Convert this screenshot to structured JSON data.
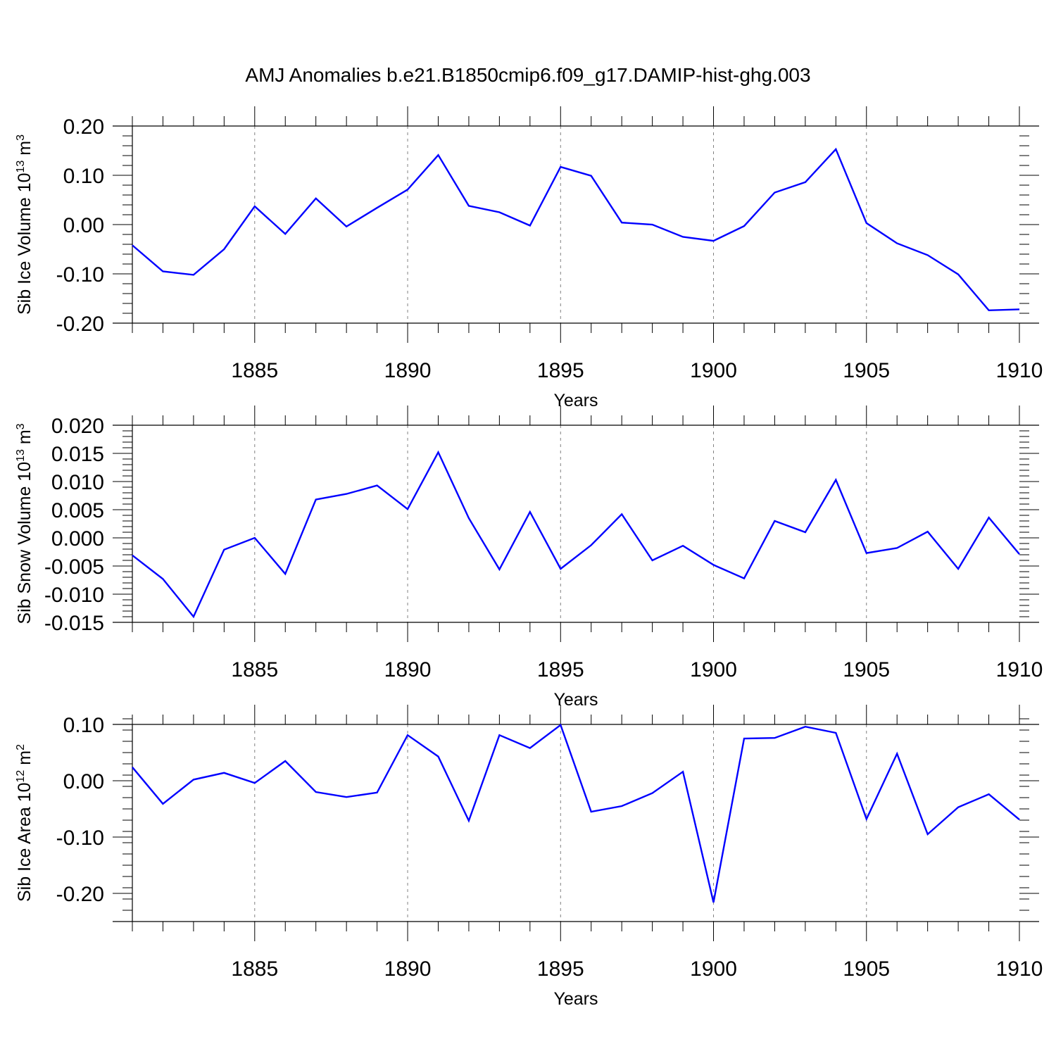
{
  "figure": {
    "title": "AMJ Anomalies b.e21.B1850cmip6.f09_g17.DAMIP-hist-ghg.003",
    "line_color": "#0000ff"
  },
  "chart_data": [
    {
      "type": "line",
      "ylabel": "Sib Ice Volume 10",
      "ylabel_exp": "13",
      "ylabel_unit": " m",
      "ylabel_unit_exp": "3",
      "xlabel": "Years",
      "xlim": [
        1881,
        1910
      ],
      "ylim": [
        -0.2,
        0.2
      ],
      "yticks": [
        -0.2,
        -0.1,
        0.0,
        0.1,
        0.2
      ],
      "ytick_labels": [
        "-0.20",
        "-0.10",
        "0.00",
        "0.10",
        "0.20"
      ],
      "xticks": [
        1885,
        1890,
        1895,
        1900,
        1905,
        1910
      ],
      "xtick_labels": [
        "1885",
        "1890",
        "1895",
        "1900",
        "1905",
        "1910"
      ],
      "minor_y_step": 0.02,
      "x": [
        1881,
        1882,
        1883,
        1884,
        1885,
        1886,
        1887,
        1888,
        1889,
        1890,
        1891,
        1892,
        1893,
        1894,
        1895,
        1896,
        1897,
        1898,
        1899,
        1900,
        1901,
        1902,
        1903,
        1904,
        1905,
        1906,
        1907,
        1908,
        1909,
        1910
      ],
      "values": [
        -0.042,
        -0.095,
        -0.102,
        -0.05,
        0.037,
        -0.019,
        0.053,
        -0.004,
        0.034,
        0.071,
        0.141,
        0.038,
        0.025,
        -0.002,
        0.117,
        0.099,
        0.004,
        0.0,
        -0.025,
        -0.033,
        -0.003,
        0.065,
        0.086,
        0.153,
        0.003,
        -0.038,
        -0.062,
        -0.101,
        -0.174,
        -0.172
      ]
    },
    {
      "type": "line",
      "ylabel": "Sib Snow Volume 10",
      "ylabel_exp": "13",
      "ylabel_unit": " m",
      "ylabel_unit_exp": "3",
      "xlabel": "Years",
      "xlim": [
        1881,
        1910
      ],
      "ylim": [
        -0.015,
        0.02
      ],
      "yticks": [
        -0.015,
        -0.01,
        -0.005,
        0.0,
        0.005,
        0.01,
        0.015,
        0.02
      ],
      "ytick_labels": [
        "-0.015",
        "-0.010",
        "-0.005",
        "0.000",
        "0.005",
        "0.010",
        "0.015",
        "0.020"
      ],
      "xticks": [
        1885,
        1890,
        1895,
        1900,
        1905,
        1910
      ],
      "xtick_labels": [
        "1885",
        "1890",
        "1895",
        "1900",
        "1905",
        "1910"
      ],
      "minor_y_step": 0.001,
      "x": [
        1881,
        1882,
        1883,
        1884,
        1885,
        1886,
        1887,
        1888,
        1889,
        1890,
        1891,
        1892,
        1893,
        1894,
        1895,
        1896,
        1897,
        1898,
        1899,
        1900,
        1901,
        1902,
        1903,
        1904,
        1905,
        1906,
        1907,
        1908,
        1909,
        1910
      ],
      "values": [
        -0.0031,
        -0.0073,
        -0.014,
        -0.0021,
        0.0,
        -0.0064,
        0.0068,
        0.0078,
        0.0093,
        0.0051,
        0.0152,
        0.0035,
        -0.0056,
        0.0046,
        -0.0055,
        -0.0013,
        0.0042,
        -0.004,
        -0.0014,
        -0.0048,
        -0.0072,
        0.003,
        0.001,
        0.0103,
        -0.0027,
        -0.0018,
        0.0011,
        -0.0055,
        0.0036,
        -0.0029
      ]
    },
    {
      "type": "line",
      "ylabel": "Sib Ice Area 10",
      "ylabel_exp": "12",
      "ylabel_unit": " m",
      "ylabel_unit_exp": "2",
      "xlabel": "Years",
      "xlim": [
        1881,
        1910
      ],
      "ylim": [
        -0.25,
        0.1
      ],
      "yticks": [
        -0.2,
        -0.1,
        0.0,
        0.1
      ],
      "ytick_labels": [
        "-0.20",
        "-0.10",
        "0.00",
        "0.10"
      ],
      "xticks": [
        1885,
        1890,
        1895,
        1900,
        1905,
        1910
      ],
      "xtick_labels": [
        "1885",
        "1890",
        "1895",
        "1900",
        "1905",
        "1910"
      ],
      "minor_y_step": 0.02,
      "x": [
        1881,
        1882,
        1883,
        1884,
        1885,
        1886,
        1887,
        1888,
        1889,
        1890,
        1891,
        1892,
        1893,
        1894,
        1895,
        1896,
        1897,
        1898,
        1899,
        1900,
        1901,
        1902,
        1903,
        1904,
        1905,
        1906,
        1907,
        1908,
        1909,
        1910
      ],
      "values": [
        0.024,
        -0.041,
        0.002,
        0.014,
        -0.004,
        0.035,
        -0.02,
        -0.029,
        -0.021,
        0.081,
        0.043,
        -0.071,
        0.081,
        0.058,
        0.099,
        -0.055,
        -0.045,
        -0.022,
        0.016,
        -0.216,
        0.075,
        0.076,
        0.096,
        0.085,
        -0.068,
        0.048,
        -0.095,
        -0.047,
        -0.024,
        -0.069
      ]
    }
  ]
}
